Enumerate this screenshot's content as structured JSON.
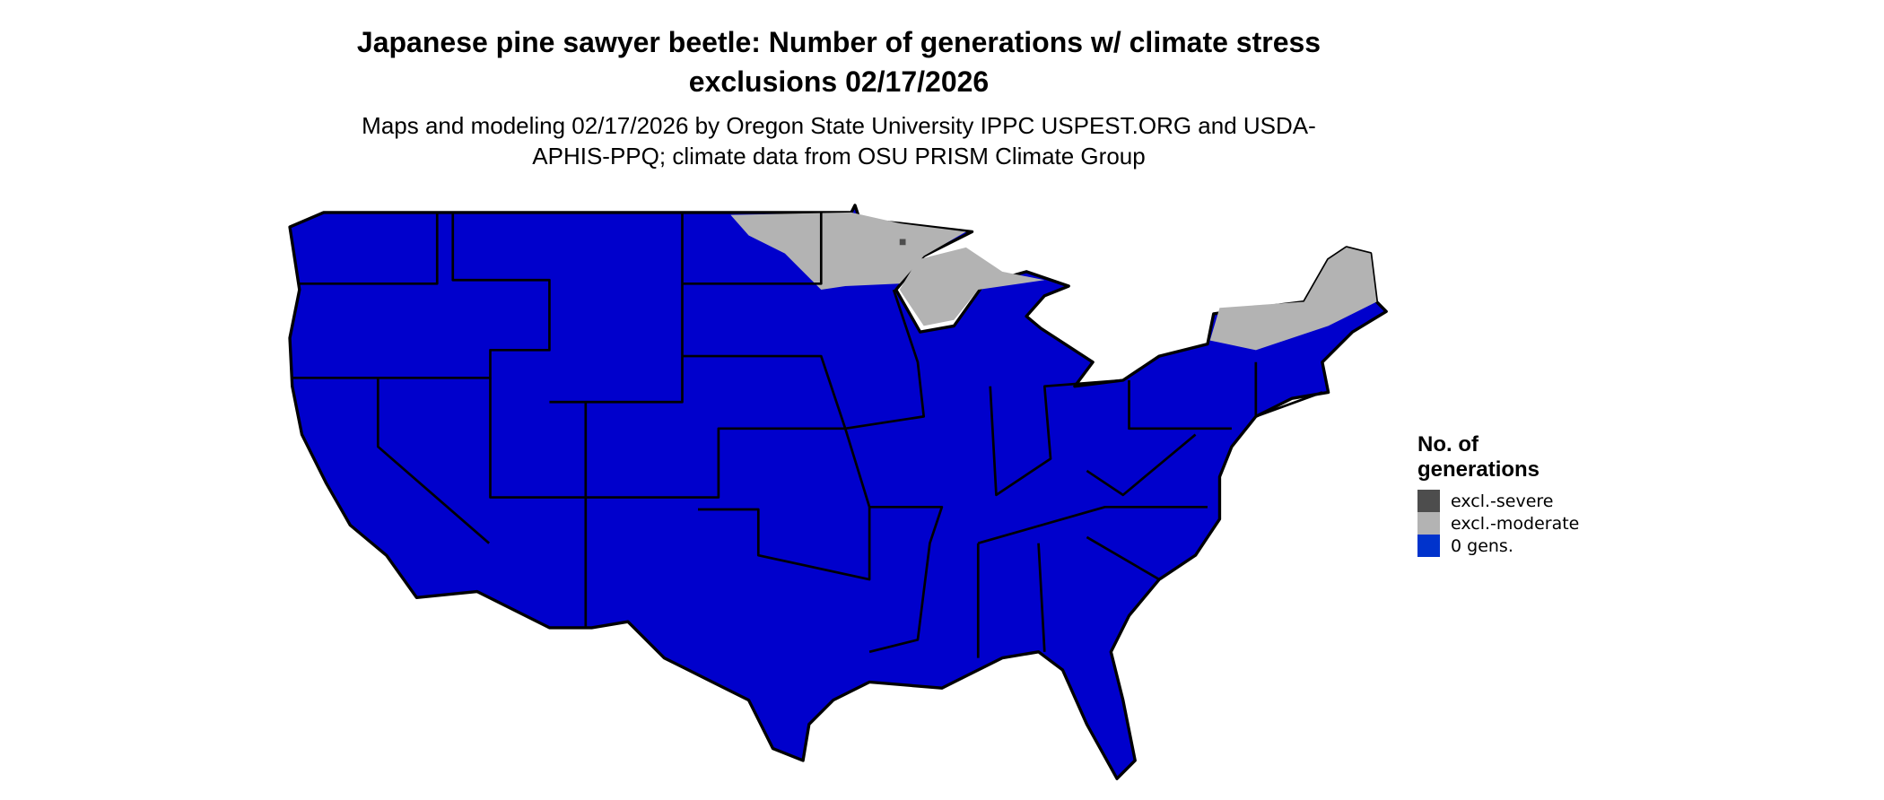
{
  "title": "Japanese pine sawyer beetle: Number of generations w/ climate stress exclusions 02/17/2026",
  "subtitle": "Maps and modeling 02/17/2026 by Oregon State University IPPC USPEST.ORG and USDA-APHIS-PPQ; climate data from OSU PRISM Climate Group",
  "map": {
    "region": "Contiguous United States",
    "colors": {
      "fill": "#0000cc",
      "border": "#000000"
    }
  },
  "legend": {
    "title": "No. of generations",
    "items": [
      {
        "label": "excl.-severe",
        "color": "#4d4d4d"
      },
      {
        "label": "excl.-moderate",
        "color": "#b3b3b3"
      },
      {
        "label": "0 gens.",
        "color": "#0033cc"
      }
    ]
  }
}
